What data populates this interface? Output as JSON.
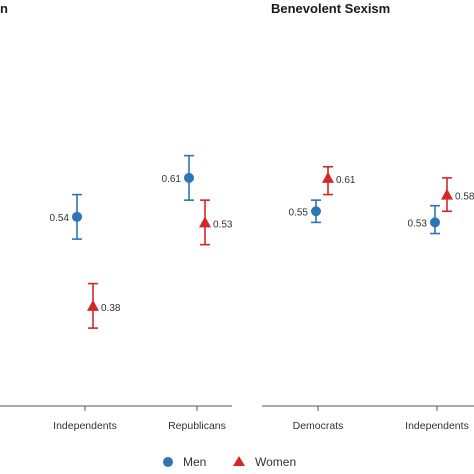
{
  "chart_data": [
    {
      "type": "scatter",
      "title": "n",
      "categories": [
        "Independents",
        "Republicans"
      ],
      "series": [
        {
          "name": "Men",
          "color": "#2e75b6",
          "marker": "circle",
          "values": [
            0.54,
            0.61
          ],
          "labels": [
            "0.54",
            "0.61"
          ],
          "ci": [
            [
              0.5,
              0.58
            ],
            [
              0.57,
              0.65
            ]
          ]
        },
        {
          "name": "Women",
          "color": "#d62728",
          "marker": "triangle",
          "values": [
            0.38,
            0.53
          ],
          "labels": [
            "0.38",
            "0.53"
          ],
          "ci": [
            [
              0.34,
              0.42
            ],
            [
              0.49,
              0.57
            ]
          ]
        }
      ],
      "ylim": [
        0.2,
        0.75
      ]
    },
    {
      "type": "scatter",
      "title": "Benevolent Sexism",
      "categories": [
        "Democrats",
        "Independents"
      ],
      "series": [
        {
          "name": "Men",
          "color": "#2e75b6",
          "marker": "circle",
          "values": [
            0.55,
            0.53
          ],
          "labels": [
            "0.55",
            "0.53"
          ],
          "ci": [
            [
              0.53,
              0.57
            ],
            [
              0.51,
              0.56
            ]
          ]
        },
        {
          "name": "Women",
          "color": "#d62728",
          "marker": "triangle",
          "values": [
            0.61,
            0.58
          ],
          "labels": [
            "0.61",
            "0.58"
          ],
          "ci": [
            [
              0.58,
              0.63
            ],
            [
              0.55,
              0.61
            ]
          ]
        }
      ],
      "ylim": [
        0.2,
        0.75
      ]
    }
  ],
  "legend": {
    "items": [
      {
        "label": "Men",
        "color": "#2e75b6",
        "marker": "circle"
      },
      {
        "label": "Women",
        "color": "#d62728",
        "marker": "triangle"
      }
    ]
  }
}
